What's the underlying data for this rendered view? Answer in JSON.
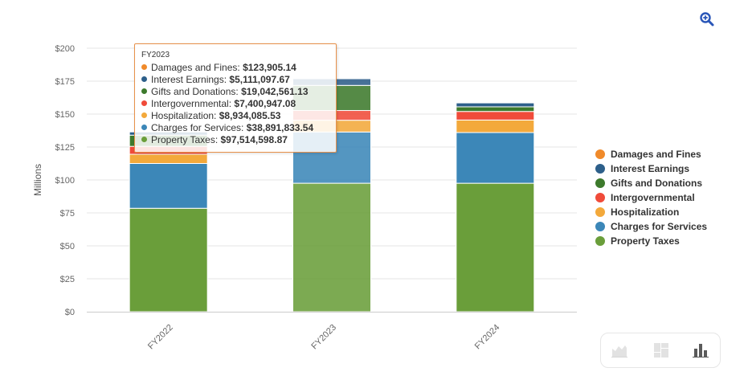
{
  "chart_data": {
    "type": "bar",
    "stacked": true,
    "categories": [
      "FY2022",
      "FY2023",
      "FY2024"
    ],
    "ylabel": "Millions",
    "ylim": [
      0,
      200
    ],
    "yticks": [
      {
        "value": 0,
        "label": "$0"
      },
      {
        "value": 25,
        "label": "$25"
      },
      {
        "value": 50,
        "label": "$50"
      },
      {
        "value": 75,
        "label": "$75"
      },
      {
        "value": 100,
        "label": "$100"
      },
      {
        "value": 125,
        "label": "$125"
      },
      {
        "value": 150,
        "label": "$150"
      },
      {
        "value": 175,
        "label": "$175"
      },
      {
        "value": 200,
        "label": "$200"
      }
    ],
    "grid": true,
    "legend_position": "right",
    "series": [
      {
        "name": "Property Taxes",
        "color": "#6a9e3a",
        "values": [
          78.5,
          97.51,
          97.5
        ]
      },
      {
        "name": "Charges for Services",
        "color": "#3c87b8",
        "values": [
          34.0,
          38.89,
          38.5
        ]
      },
      {
        "name": "Hospitalization",
        "color": "#f3a93b",
        "values": [
          7.0,
          8.93,
          9.5
        ]
      },
      {
        "name": "Intergovernmental",
        "color": "#f04b3a",
        "values": [
          6.0,
          7.4,
          6.5
        ]
      },
      {
        "name": "Gifts and Donations",
        "color": "#3d7a2c",
        "values": [
          8.5,
          19.04,
          3.5
        ]
      },
      {
        "name": "Interest Earnings",
        "color": "#2d5f8a",
        "values": [
          2.5,
          5.11,
          3.0
        ]
      },
      {
        "name": "Damages and Fines",
        "color": "#f08a2a",
        "values": [
          0.1,
          0.12,
          0.1
        ]
      }
    ],
    "highlighted_category": "FY2023",
    "legend_order": [
      "Damages and Fines",
      "Interest Earnings",
      "Gifts and Donations",
      "Intergovernmental",
      "Hospitalization",
      "Charges for Services",
      "Property Taxes"
    ]
  },
  "tooltip": {
    "header": "FY2023",
    "rows": [
      {
        "label": "Damages and Fines:",
        "value": "$123,905.14",
        "color": "#f08a2a"
      },
      {
        "label": "Interest Earnings:",
        "value": "$5,111,097.67",
        "color": "#2d5f8a"
      },
      {
        "label": "Gifts and Donations:",
        "value": "$19,042,561.13",
        "color": "#3d7a2c"
      },
      {
        "label": "Intergovernmental:",
        "value": "$7,400,947.08",
        "color": "#f04b3a"
      },
      {
        "label": "Hospitalization:",
        "value": "$8,934,085.53",
        "color": "#f3a93b"
      },
      {
        "label": "Charges for Services:",
        "value": "$38,891,833.54",
        "color": "#3c87b8"
      },
      {
        "label": "Property Taxes:",
        "value": "$97,514,598.87",
        "color": "#6a9e3a"
      }
    ]
  },
  "icons": {
    "zoom": "zoom-in-icon",
    "area_chart": "area-chart-icon",
    "treemap": "treemap-icon",
    "bar_chart": "bar-chart-icon"
  }
}
